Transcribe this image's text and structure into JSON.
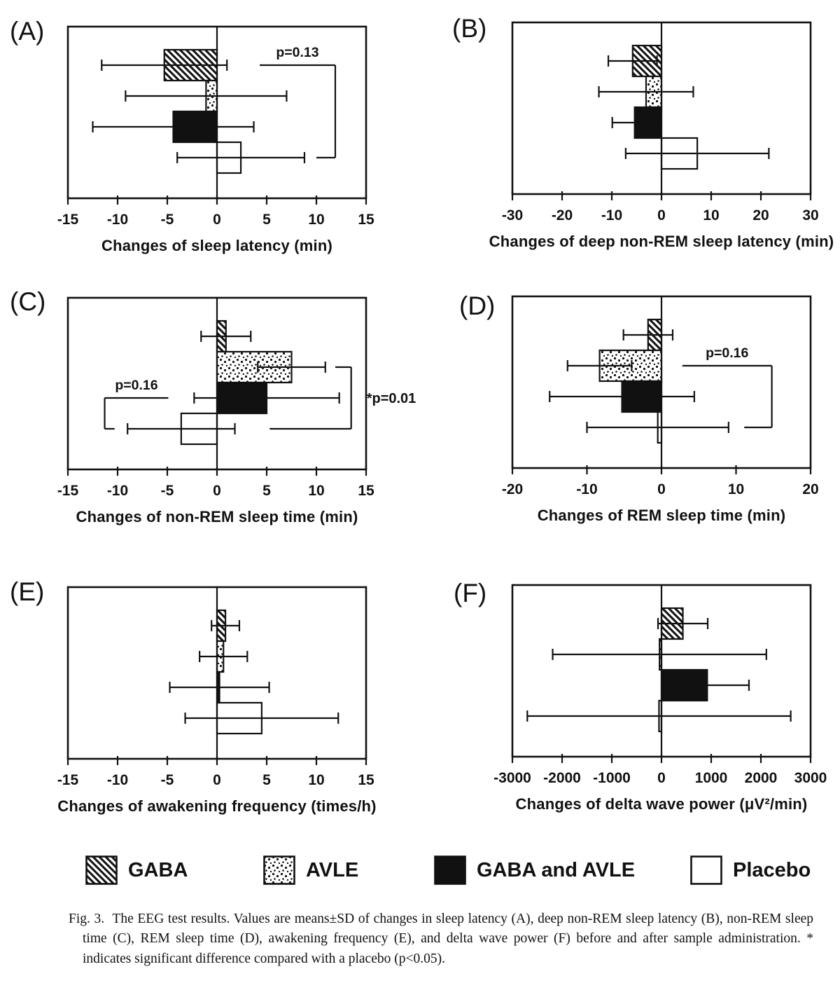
{
  "figure": {
    "caption_label": "Fig. 3.",
    "caption_text": "The EEG test results. Values are means±SD of changes in sleep latency (A), deep non-REM sleep latency (B), non-REM sleep time (C), REM sleep time (D), awakening frequency (E), and delta wave power (F) before and after sample administration. * indicates significant difference compared with a placebo (p<0.05)."
  },
  "legend": {
    "items": [
      {
        "label": "GABA",
        "fill": "hatch"
      },
      {
        "label": "AVLE",
        "fill": "dots"
      },
      {
        "label": "GABA and AVLE",
        "fill": "black"
      },
      {
        "label": "Placebo",
        "fill": "white"
      }
    ]
  },
  "colors": {
    "ink": "#111111",
    "paper": "#ffffff"
  },
  "chart_data": [
    {
      "type": "bar",
      "orientation": "horizontal",
      "panel_label": "(A)",
      "xlabel": "Changes of sleep latency (min)",
      "xlim": [
        -15,
        15
      ],
      "xticks": [
        -15,
        -10,
        -5,
        0,
        5,
        10,
        15
      ],
      "series": [
        {
          "name": "GABA",
          "fill": "hatch",
          "mean": -5.3,
          "sd": 6.3
        },
        {
          "name": "AVLE",
          "fill": "dots",
          "mean": -1.1,
          "sd": 8.1
        },
        {
          "name": "GABA and AVLE",
          "fill": "black",
          "mean": -4.4,
          "sd": 8.1
        },
        {
          "name": "Placebo",
          "fill": "white",
          "mean": 2.4,
          "sd": 6.4
        }
      ],
      "annotations": [
        {
          "label": "p=0.13",
          "significant": false,
          "bracket_x": 11.9,
          "row_a": 0,
          "lead_a": 4.3,
          "row_b": 3,
          "lead_b": 10.0,
          "label_pos": "top"
        }
      ]
    },
    {
      "type": "bar",
      "orientation": "horizontal",
      "panel_label": "(B)",
      "xlabel": "Changes of deep non-REM sleep latency (min)",
      "xlim": [
        -30,
        30
      ],
      "xticks": [
        -30,
        -20,
        -10,
        0,
        10,
        20,
        30
      ],
      "series": [
        {
          "name": "GABA",
          "fill": "hatch",
          "mean": -5.8,
          "sd": 4.9
        },
        {
          "name": "AVLE",
          "fill": "dots",
          "mean": -3.1,
          "sd": 9.5
        },
        {
          "name": "GABA and AVLE",
          "fill": "black",
          "mean": -5.4,
          "sd": 4.5
        },
        {
          "name": "Placebo",
          "fill": "white",
          "mean": 7.2,
          "sd": 14.4
        }
      ],
      "annotations": []
    },
    {
      "type": "bar",
      "orientation": "horizontal",
      "panel_label": "(C)",
      "xlabel": "Changes of non-REM sleep time (min)",
      "xlim": [
        -15,
        15
      ],
      "xticks": [
        -15,
        -10,
        -5,
        0,
        5,
        10,
        15
      ],
      "series": [
        {
          "name": "GABA",
          "fill": "hatch",
          "mean": 0.9,
          "sd": 2.5
        },
        {
          "name": "AVLE",
          "fill": "dots",
          "mean": 7.5,
          "sd": 3.4
        },
        {
          "name": "GABA and AVLE",
          "fill": "black",
          "mean": 5.0,
          "sd": 7.3
        },
        {
          "name": "Placebo",
          "fill": "white",
          "mean": -3.6,
          "sd": 5.4
        }
      ],
      "annotations": [
        {
          "label": "p=0.16",
          "significant": false,
          "bracket_x": -11.3,
          "row_a": 2,
          "lead_a": -4.9,
          "row_b": 3,
          "lead_b": -10.3,
          "label_pos": "top"
        },
        {
          "label": "p=0.01",
          "significant": true,
          "bracket_x": 13.5,
          "row_a": 1,
          "lead_a": 11.9,
          "row_b": 3,
          "lead_b": 5.3,
          "label_pos": "right"
        }
      ]
    },
    {
      "type": "bar",
      "orientation": "horizontal",
      "panel_label": "(D)",
      "xlabel": "Changes of REM sleep time (min)",
      "xlim": [
        -20,
        20
      ],
      "xticks": [
        -20,
        -10,
        0,
        10,
        20
      ],
      "series": [
        {
          "name": "GABA",
          "fill": "hatch",
          "mean": -1.8,
          "sd": 3.3
        },
        {
          "name": "AVLE",
          "fill": "dots",
          "mean": -8.3,
          "sd": 4.3
        },
        {
          "name": "GABA and AVLE",
          "fill": "black",
          "mean": -5.3,
          "sd": 9.7
        },
        {
          "name": "Placebo",
          "fill": "white",
          "mean": -0.5,
          "sd": 9.5
        }
      ],
      "annotations": [
        {
          "label": "p=0.16",
          "significant": false,
          "bracket_x": 14.8,
          "row_a": 1,
          "lead_a": 2.8,
          "row_b": 3,
          "lead_b": 11.1,
          "label_pos": "top"
        }
      ]
    },
    {
      "type": "bar",
      "orientation": "horizontal",
      "panel_label": "(E)",
      "xlabel": "Changes of awakening frequency (times/h)",
      "xlim": [
        -15,
        15
      ],
      "xticks": [
        -15,
        -10,
        -5,
        0,
        5,
        10,
        15
      ],
      "series": [
        {
          "name": "GABA",
          "fill": "hatch",
          "mean": 0.85,
          "sd": 1.4
        },
        {
          "name": "AVLE",
          "fill": "dots",
          "mean": 0.65,
          "sd": 2.4
        },
        {
          "name": "GABA and AVLE",
          "fill": "black",
          "mean": 0.25,
          "sd": 5.0
        },
        {
          "name": "Placebo",
          "fill": "white",
          "mean": 4.5,
          "sd": 7.7
        }
      ],
      "annotations": []
    },
    {
      "type": "bar",
      "orientation": "horizontal",
      "panel_label": "(F)",
      "xlabel": "Changes of delta wave power (μV²/min)",
      "xlim": [
        -3000,
        3000
      ],
      "xticks": [
        -3000,
        -2000,
        -1000,
        0,
        1000,
        2000,
        3000
      ],
      "series": [
        {
          "name": "GABA",
          "fill": "hatch",
          "mean": 430,
          "sd": 500
        },
        {
          "name": "AVLE",
          "fill": "dots",
          "mean": -40,
          "sd": 2150
        },
        {
          "name": "GABA and AVLE",
          "fill": "black",
          "mean": 920,
          "sd": 840
        },
        {
          "name": "Placebo",
          "fill": "white",
          "mean": -50,
          "sd": 2650
        }
      ],
      "annotations": []
    }
  ]
}
